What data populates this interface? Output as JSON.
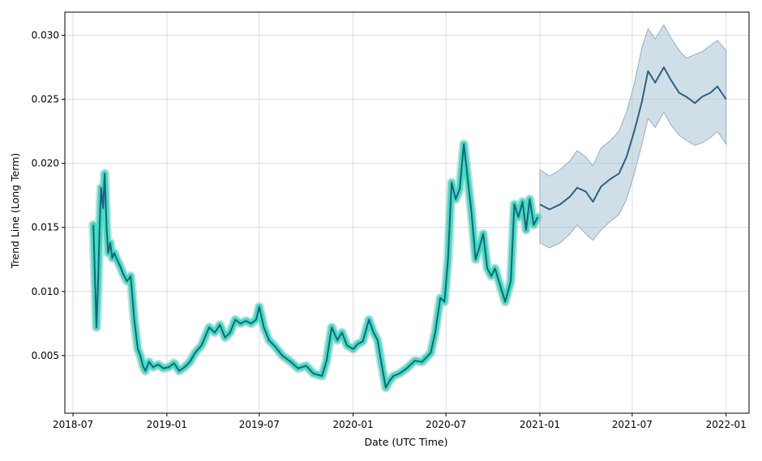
{
  "chart_data": {
    "type": "line",
    "title": "",
    "xlabel": "Date (UTC Time)",
    "ylabel": "Trend Line (Long Term)",
    "xlim": [
      "2018-06-15",
      "2022-02-15"
    ],
    "ylim": [
      0.0005,
      0.0318
    ],
    "grid": true,
    "x_ticks": [
      {
        "date": "2018-07-01",
        "label": "2018-07"
      },
      {
        "date": "2019-01-01",
        "label": "2019-01"
      },
      {
        "date": "2019-07-01",
        "label": "2019-07"
      },
      {
        "date": "2020-01-01",
        "label": "2020-01"
      },
      {
        "date": "2020-07-01",
        "label": "2020-07"
      },
      {
        "date": "2021-01-01",
        "label": "2021-01"
      },
      {
        "date": "2021-07-01",
        "label": "2021-07"
      },
      {
        "date": "2022-01-01",
        "label": "2022-01"
      }
    ],
    "y_ticks": [
      {
        "value": 0.005,
        "label": "0.005"
      },
      {
        "value": 0.01,
        "label": "0.010"
      },
      {
        "value": 0.015,
        "label": "0.015"
      },
      {
        "value": 0.02,
        "label": "0.020"
      },
      {
        "value": 0.025,
        "label": "0.025"
      },
      {
        "value": 0.03,
        "label": "0.030"
      }
    ],
    "colors": {
      "history_band": "#40e0c0",
      "history_line": "#1f5f7f",
      "forecast_line": "#2a6285",
      "forecast_band": "#a9c4d4"
    },
    "series": [
      {
        "role": "history",
        "x": [
          "2018-08-10",
          "2018-08-13",
          "2018-08-16",
          "2018-08-19",
          "2018-08-22",
          "2018-08-25",
          "2018-08-29",
          "2018-09-01",
          "2018-09-05",
          "2018-09-08",
          "2018-09-12",
          "2018-09-16",
          "2018-09-20",
          "2018-09-25",
          "2018-10-01",
          "2018-10-08",
          "2018-10-15",
          "2018-10-22",
          "2018-10-29",
          "2018-11-05",
          "2018-11-10",
          "2018-11-15",
          "2018-11-20",
          "2018-11-27",
          "2018-12-05",
          "2018-12-15",
          "2018-12-25",
          "2019-01-05",
          "2019-01-15",
          "2019-01-25",
          "2019-02-05",
          "2019-02-15",
          "2019-02-25",
          "2019-03-10",
          "2019-03-25",
          "2019-04-05",
          "2019-04-15",
          "2019-04-25",
          "2019-05-05",
          "2019-05-15",
          "2019-05-25",
          "2019-06-05",
          "2019-06-15",
          "2019-06-25",
          "2019-07-01",
          "2019-07-10",
          "2019-07-20",
          "2019-08-01",
          "2019-08-15",
          "2019-09-01",
          "2019-09-15",
          "2019-10-01",
          "2019-10-15",
          "2019-11-01",
          "2019-11-10",
          "2019-11-20",
          "2019-12-01",
          "2019-12-10",
          "2019-12-20",
          "2020-01-01",
          "2020-01-10",
          "2020-01-20",
          "2020-02-01",
          "2020-02-10",
          "2020-02-18",
          "2020-02-25",
          "2020-03-05",
          "2020-03-12",
          "2020-03-20",
          "2020-04-01",
          "2020-04-15",
          "2020-05-01",
          "2020-05-15",
          "2020-06-01",
          "2020-06-10",
          "2020-06-20",
          "2020-06-28",
          "2020-07-05",
          "2020-07-12",
          "2020-07-20",
          "2020-07-28",
          "2020-08-05",
          "2020-08-12",
          "2020-08-20",
          "2020-08-28",
          "2020-09-05",
          "2020-09-12",
          "2020-09-20",
          "2020-09-28",
          "2020-10-05",
          "2020-10-15",
          "2020-10-25",
          "2020-11-05",
          "2020-11-12",
          "2020-11-20",
          "2020-11-28",
          "2020-12-05",
          "2020-12-12",
          "2020-12-20",
          "2020-12-28"
        ],
        "y": [
          0.0152,
          0.0112,
          0.0072,
          0.0105,
          0.0148,
          0.0181,
          0.0165,
          0.0192,
          0.0148,
          0.013,
          0.0138,
          0.0126,
          0.013,
          0.0125,
          0.012,
          0.0113,
          0.0108,
          0.0112,
          0.0078,
          0.0055,
          0.005,
          0.0042,
          0.0038,
          0.0045,
          0.0041,
          0.0043,
          0.004,
          0.0041,
          0.0044,
          0.0038,
          0.0041,
          0.0045,
          0.0052,
          0.0058,
          0.0072,
          0.0068,
          0.0074,
          0.0064,
          0.0068,
          0.0078,
          0.0075,
          0.0077,
          0.0075,
          0.0078,
          0.0088,
          0.0072,
          0.0062,
          0.0057,
          0.005,
          0.0045,
          0.004,
          0.0042,
          0.0036,
          0.0034,
          0.0046,
          0.0072,
          0.0062,
          0.0068,
          0.0058,
          0.0055,
          0.0059,
          0.0061,
          0.0078,
          0.0068,
          0.0062,
          0.0045,
          0.0025,
          0.003,
          0.0034,
          0.0036,
          0.004,
          0.0046,
          0.0045,
          0.0052,
          0.0068,
          0.0095,
          0.0092,
          0.0125,
          0.0185,
          0.0172,
          0.018,
          0.0215,
          0.019,
          0.0162,
          0.0125,
          0.0135,
          0.0145,
          0.0118,
          0.0112,
          0.0118,
          0.0105,
          0.0092,
          0.0108,
          0.0168,
          0.0158,
          0.017,
          0.0148,
          0.0172,
          0.0152,
          0.0158
        ]
      },
      {
        "role": "forecast",
        "x": [
          "2021-01-01",
          "2021-01-20",
          "2021-02-10",
          "2021-03-01",
          "2021-03-15",
          "2021-04-01",
          "2021-04-15",
          "2021-05-01",
          "2021-05-20",
          "2021-06-05",
          "2021-06-20",
          "2021-07-05",
          "2021-07-20",
          "2021-08-01",
          "2021-08-15",
          "2021-09-01",
          "2021-09-15",
          "2021-10-01",
          "2021-10-15",
          "2021-11-01",
          "2021-11-15",
          "2021-12-01",
          "2021-12-15",
          "2022-01-01"
        ],
        "y": [
          0.0168,
          0.0164,
          0.0168,
          0.0174,
          0.0181,
          0.0178,
          0.017,
          0.0182,
          0.0188,
          0.0192,
          0.0205,
          0.0225,
          0.0248,
          0.0272,
          0.0263,
          0.0275,
          0.0265,
          0.0255,
          0.0252,
          0.0247,
          0.0252,
          0.0255,
          0.026,
          0.025
        ],
        "lower": [
          0.0138,
          0.0134,
          0.0138,
          0.0145,
          0.0152,
          0.0145,
          0.014,
          0.0148,
          0.0155,
          0.016,
          0.0172,
          0.0192,
          0.0215,
          0.0235,
          0.0228,
          0.024,
          0.023,
          0.0222,
          0.0218,
          0.0214,
          0.0216,
          0.022,
          0.0225,
          0.0215
        ],
        "upper": [
          0.0195,
          0.019,
          0.0195,
          0.0202,
          0.021,
          0.0205,
          0.0198,
          0.0212,
          0.0218,
          0.0225,
          0.024,
          0.0262,
          0.029,
          0.0305,
          0.0297,
          0.0308,
          0.0298,
          0.0288,
          0.0282,
          0.0285,
          0.0287,
          0.0292,
          0.0296,
          0.0288
        ]
      }
    ]
  }
}
